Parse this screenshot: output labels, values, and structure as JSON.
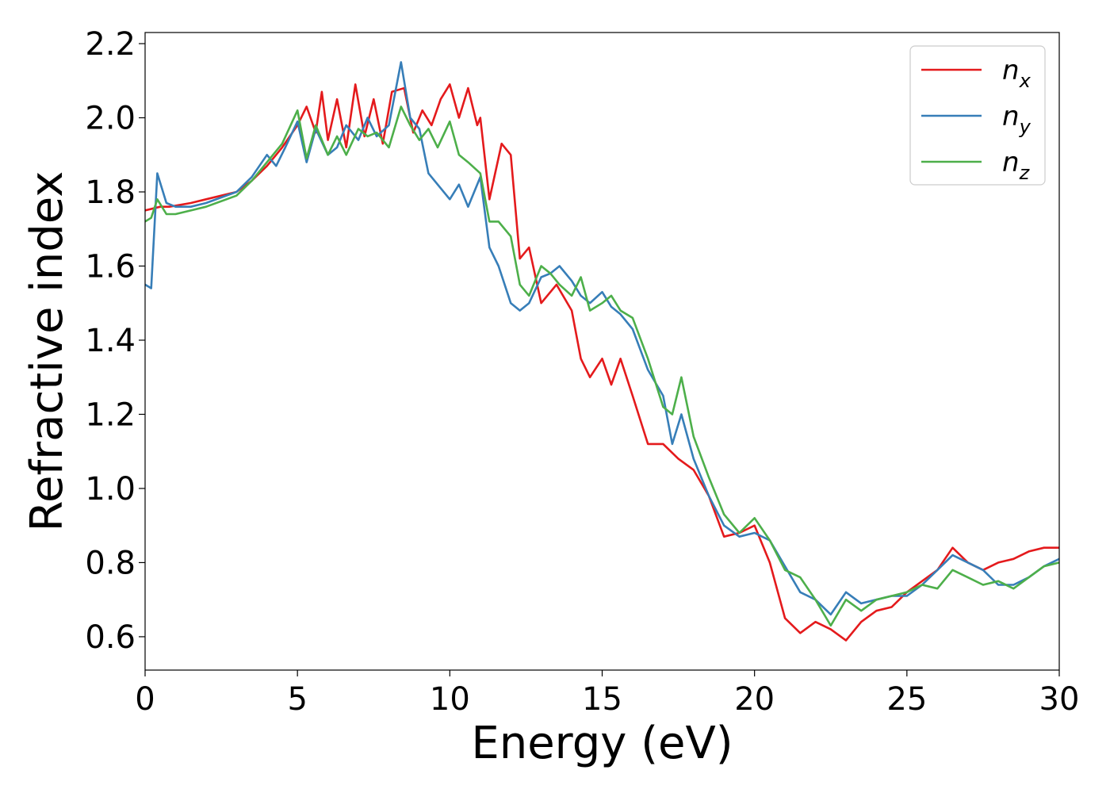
{
  "chart_data": {
    "type": "line",
    "xlabel": "Energy (eV)",
    "ylabel": "Refractive index",
    "xlim": [
      0,
      30
    ],
    "ylim": [
      0.51,
      2.23
    ],
    "x_ticks": [
      0,
      5,
      10,
      15,
      20,
      25,
      30
    ],
    "x_tick_labels": [
      "0",
      "5",
      "10",
      "15",
      "20",
      "25",
      "30"
    ],
    "y_ticks": [
      0.6,
      0.8,
      1.0,
      1.2,
      1.4,
      1.6,
      1.8,
      2.0,
      2.2
    ],
    "y_tick_labels": [
      "0.6",
      "0.8",
      "1.0",
      "1.2",
      "1.4",
      "1.6",
      "1.8",
      "2.0",
      "2.2"
    ],
    "grid": false,
    "legend_position": "top-right",
    "series": [
      {
        "name": "n",
        "subscript": "x",
        "color": "#e41a1c",
        "x": [
          0,
          0.5,
          0.8,
          1.5,
          2,
          3,
          3.5,
          4,
          4.5,
          5,
          5.3,
          5.6,
          5.8,
          6,
          6.3,
          6.6,
          6.9,
          7.2,
          7.5,
          7.8,
          8.1,
          8.5,
          8.8,
          9.1,
          9.4,
          9.7,
          10.0,
          10.3,
          10.6,
          10.9,
          11.0,
          11.3,
          11.7,
          12.0,
          12.3,
          12.6,
          13.0,
          13.5,
          14.0,
          14.3,
          14.6,
          15.0,
          15.3,
          15.6,
          16.0,
          16.5,
          17.0,
          17.5,
          18.0,
          18.5,
          19.0,
          19.5,
          20.0,
          20.5,
          21.0,
          21.5,
          22.0,
          22.5,
          23.0,
          23.5,
          24.0,
          24.5,
          25.0,
          25.5,
          26.0,
          26.5,
          27.0,
          27.5,
          28.0,
          28.5,
          29.0,
          29.5,
          30.0
        ],
        "y": [
          1.75,
          1.76,
          1.76,
          1.77,
          1.78,
          1.8,
          1.83,
          1.87,
          1.92,
          1.98,
          2.03,
          1.96,
          2.07,
          1.94,
          2.05,
          1.92,
          2.09,
          1.95,
          2.05,
          1.93,
          2.07,
          2.08,
          1.96,
          2.02,
          1.98,
          2.05,
          2.09,
          2.0,
          2.08,
          1.98,
          2.0,
          1.78,
          1.93,
          1.9,
          1.62,
          1.65,
          1.5,
          1.55,
          1.48,
          1.35,
          1.3,
          1.35,
          1.28,
          1.35,
          1.25,
          1.12,
          1.12,
          1.08,
          1.05,
          0.98,
          0.87,
          0.88,
          0.9,
          0.8,
          0.65,
          0.61,
          0.64,
          0.62,
          0.59,
          0.64,
          0.67,
          0.68,
          0.72,
          0.75,
          0.78,
          0.84,
          0.8,
          0.78,
          0.8,
          0.81,
          0.83,
          0.84,
          0.84
        ]
      },
      {
        "name": "n",
        "subscript": "y",
        "color": "#377eb8",
        "x": [
          0,
          0.2,
          0.4,
          0.7,
          1.0,
          1.5,
          2,
          3,
          3.5,
          4,
          4.3,
          4.6,
          5.0,
          5.3,
          5.6,
          6.0,
          6.3,
          6.6,
          7.0,
          7.3,
          7.6,
          8.0,
          8.4,
          8.7,
          9.0,
          9.3,
          9.6,
          10.0,
          10.3,
          10.6,
          11.0,
          11.3,
          11.6,
          12.0,
          12.3,
          12.6,
          13.0,
          13.3,
          13.6,
          14.0,
          14.3,
          14.6,
          15.0,
          15.3,
          15.6,
          16.0,
          16.5,
          17.0,
          17.3,
          17.6,
          18.0,
          18.5,
          19.0,
          19.5,
          20.0,
          20.5,
          21.0,
          21.5,
          22.0,
          22.5,
          23.0,
          23.5,
          24.0,
          24.5,
          25.0,
          25.5,
          26.0,
          26.5,
          27.0,
          27.5,
          28.0,
          28.5,
          29.0,
          29.5,
          30.0
        ],
        "y": [
          1.55,
          1.54,
          1.85,
          1.77,
          1.76,
          1.76,
          1.77,
          1.8,
          1.84,
          1.9,
          1.87,
          1.92,
          1.99,
          1.88,
          1.97,
          1.9,
          1.92,
          1.98,
          1.94,
          2.0,
          1.95,
          1.98,
          2.15,
          2.0,
          1.97,
          1.85,
          1.82,
          1.78,
          1.82,
          1.76,
          1.84,
          1.65,
          1.6,
          1.5,
          1.48,
          1.5,
          1.57,
          1.58,
          1.6,
          1.56,
          1.52,
          1.5,
          1.53,
          1.49,
          1.47,
          1.43,
          1.32,
          1.25,
          1.12,
          1.2,
          1.08,
          0.98,
          0.9,
          0.87,
          0.88,
          0.86,
          0.79,
          0.72,
          0.7,
          0.66,
          0.72,
          0.69,
          0.7,
          0.71,
          0.71,
          0.74,
          0.78,
          0.82,
          0.8,
          0.78,
          0.74,
          0.74,
          0.76,
          0.79,
          0.81
        ]
      },
      {
        "name": "n",
        "subscript": "z",
        "color": "#4daf4a",
        "x": [
          0,
          0.2,
          0.4,
          0.7,
          1.0,
          1.5,
          2,
          3,
          3.5,
          4,
          4.5,
          5.0,
          5.3,
          5.6,
          6.0,
          6.3,
          6.6,
          7.0,
          7.3,
          7.6,
          8.0,
          8.4,
          8.7,
          9.0,
          9.3,
          9.6,
          10.0,
          10.3,
          10.6,
          11.0,
          11.3,
          11.6,
          12.0,
          12.3,
          12.6,
          13.0,
          13.3,
          13.6,
          14.0,
          14.3,
          14.6,
          15.0,
          15.3,
          15.6,
          16.0,
          16.5,
          17.0,
          17.3,
          17.6,
          18.0,
          18.5,
          19.0,
          19.5,
          20.0,
          20.5,
          21.0,
          21.5,
          22.0,
          22.5,
          23.0,
          23.5,
          24.0,
          24.5,
          25.0,
          25.5,
          26.0,
          26.5,
          27.0,
          27.5,
          28.0,
          28.5,
          29.0,
          29.5,
          30.0
        ],
        "y": [
          1.72,
          1.73,
          1.78,
          1.74,
          1.74,
          1.75,
          1.76,
          1.79,
          1.83,
          1.88,
          1.93,
          2.02,
          1.89,
          1.98,
          1.9,
          1.95,
          1.9,
          1.97,
          1.95,
          1.96,
          1.92,
          2.03,
          1.98,
          1.94,
          1.97,
          1.92,
          1.99,
          1.9,
          1.88,
          1.85,
          1.72,
          1.72,
          1.68,
          1.55,
          1.52,
          1.6,
          1.58,
          1.55,
          1.52,
          1.57,
          1.48,
          1.5,
          1.52,
          1.48,
          1.46,
          1.35,
          1.22,
          1.2,
          1.3,
          1.14,
          1.03,
          0.93,
          0.88,
          0.92,
          0.86,
          0.78,
          0.76,
          0.7,
          0.63,
          0.7,
          0.67,
          0.7,
          0.71,
          0.72,
          0.74,
          0.73,
          0.78,
          0.76,
          0.74,
          0.75,
          0.73,
          0.76,
          0.79,
          0.8
        ]
      }
    ]
  }
}
